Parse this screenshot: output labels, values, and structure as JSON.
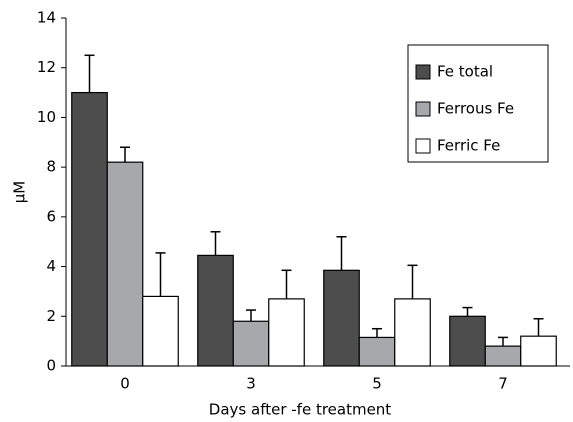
{
  "chart_data": {
    "type": "bar",
    "x_label": "Days after -fe treatment",
    "y_label": "μM",
    "categories": [
      "0",
      "3",
      "5",
      "7"
    ],
    "series": [
      {
        "name": "Fe total",
        "color": "#4d4d4d",
        "values": [
          11.0,
          4.45,
          3.85,
          2.0
        ],
        "errors": [
          1.5,
          0.95,
          1.35,
          0.35
        ]
      },
      {
        "name": "Ferrous Fe",
        "color": "#a6a8ab",
        "values": [
          8.2,
          1.8,
          1.15,
          0.8
        ],
        "errors": [
          0.6,
          0.45,
          0.35,
          0.35
        ]
      },
      {
        "name": "Ferric Fe",
        "color": "#ffffff",
        "values": [
          2.8,
          2.7,
          2.7,
          1.2
        ],
        "errors": [
          1.75,
          1.15,
          1.35,
          0.7
        ]
      }
    ],
    "ylim": [
      0,
      14
    ],
    "yticks": [
      0,
      2,
      4,
      6,
      8,
      10,
      12,
      14
    ],
    "legend": "upper right"
  }
}
